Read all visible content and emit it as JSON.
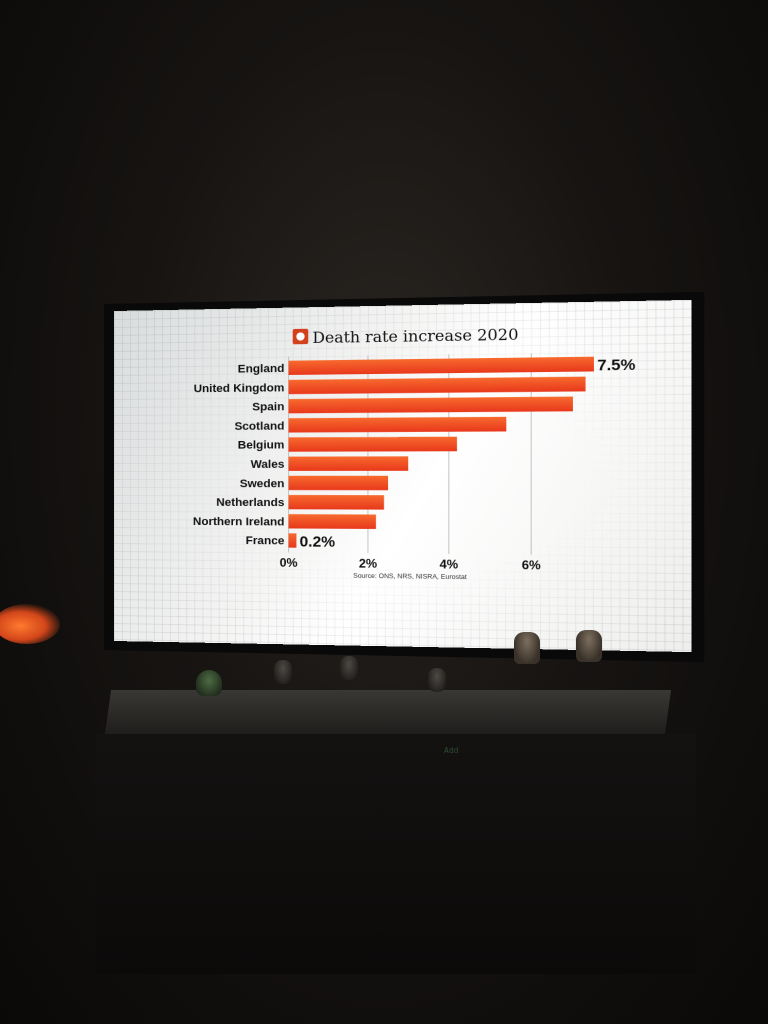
{
  "chart_data": {
    "type": "bar",
    "orientation": "horizontal",
    "title": "Death rate increase 2020",
    "categories": [
      "England",
      "United Kingdom",
      "Spain",
      "Scotland",
      "Belgium",
      "Wales",
      "Sweden",
      "Netherlands",
      "Northern Ireland",
      "France"
    ],
    "values": [
      7.5,
      7.3,
      7.0,
      5.4,
      4.2,
      3.0,
      2.5,
      2.4,
      2.2,
      0.2
    ],
    "value_labels": {
      "0": "7.5%",
      "9": "0.2%"
    },
    "x_ticks": [
      "0%",
      "2%",
      "4%",
      "6%"
    ],
    "xlim": [
      0,
      8
    ],
    "grid": true,
    "source": "Source: ONS, NRS, NISRA, Eurostat",
    "colors": {
      "bar_gradient": [
        "#f4562b",
        "#ee3b1e"
      ],
      "bar_alt": [
        "#f56b20",
        "#ea4a13"
      ],
      "text": "#111111",
      "grid": "#b9b9b9",
      "icon_bg": "#d2401c"
    }
  },
  "display_text": "Add"
}
